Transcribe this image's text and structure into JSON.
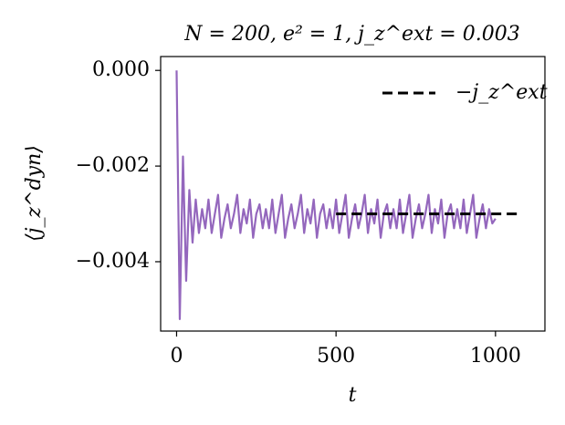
{
  "chart_data": {
    "type": "line",
    "title": "N = 200, e² = 1, j_z^ext = 0.003",
    "xlabel": "t",
    "ylabel": "⟨j_z^dyn⟩",
    "xlim": [
      -50,
      1155
    ],
    "xticks": [
      0,
      500,
      1000
    ],
    "ylim": [
      -0.00545,
      0.00029
    ],
    "yticks": [
      {
        "value": 0,
        "label": "0.000"
      },
      {
        "value": -0.002,
        "label": "−0.002"
      },
      {
        "value": -0.004,
        "label": "−0.004"
      }
    ],
    "legend": "upper right",
    "series": [
      {
        "color": "#9467bd",
        "dash": false,
        "x": [
          0,
          10,
          20,
          30,
          40,
          50,
          60,
          70,
          80,
          90,
          100,
          110,
          120,
          130,
          140,
          150,
          160,
          170,
          180,
          190,
          200,
          210,
          220,
          230,
          240,
          250,
          260,
          270,
          280,
          290,
          300,
          310,
          320,
          330,
          340,
          350,
          360,
          370,
          380,
          390,
          400,
          410,
          420,
          430,
          440,
          450,
          460,
          470,
          480,
          490,
          500,
          510,
          520,
          530,
          540,
          550,
          560,
          570,
          580,
          590,
          600,
          610,
          620,
          630,
          640,
          650,
          660,
          670,
          680,
          690,
          700,
          710,
          720,
          730,
          740,
          750,
          760,
          770,
          780,
          790,
          800,
          810,
          820,
          830,
          840,
          850,
          860,
          870,
          880,
          890,
          900,
          910,
          920,
          930,
          940,
          950,
          960,
          970,
          980,
          990,
          1000
        ],
        "values": [
          0,
          -0.0052,
          -0.0018,
          -0.0044,
          -0.0025,
          -0.0036,
          -0.0027,
          -0.0034,
          -0.0029,
          -0.0033,
          -0.0027,
          -0.0034,
          -0.003,
          -0.0026,
          -0.0035,
          -0.0031,
          -0.0028,
          -0.0033,
          -0.003,
          -0.0026,
          -0.0034,
          -0.0029,
          -0.0032,
          -0.0027,
          -0.0035,
          -0.003,
          -0.0028,
          -0.0033,
          -0.0029,
          -0.0033,
          -0.0027,
          -0.0034,
          -0.003,
          -0.0026,
          -0.0035,
          -0.0031,
          -0.0028,
          -0.0033,
          -0.003,
          -0.0026,
          -0.0034,
          -0.0029,
          -0.0032,
          -0.0027,
          -0.0035,
          -0.003,
          -0.0028,
          -0.0033,
          -0.0029,
          -0.0033,
          -0.0027,
          -0.0034,
          -0.003,
          -0.0026,
          -0.0035,
          -0.0031,
          -0.0028,
          -0.0033,
          -0.003,
          -0.0026,
          -0.0034,
          -0.0029,
          -0.0032,
          -0.0027,
          -0.0035,
          -0.003,
          -0.0028,
          -0.0033,
          -0.0029,
          -0.0033,
          -0.0027,
          -0.0034,
          -0.003,
          -0.0026,
          -0.0035,
          -0.0031,
          -0.0028,
          -0.0033,
          -0.003,
          -0.0026,
          -0.0034,
          -0.0029,
          -0.0032,
          -0.0027,
          -0.0035,
          -0.003,
          -0.0028,
          -0.0033,
          -0.0029,
          -0.0033,
          -0.0027,
          -0.0034,
          -0.003,
          -0.0026,
          -0.0035,
          -0.0031,
          -0.0028,
          -0.0033,
          -0.0029,
          -0.0032,
          -0.0031
        ]
      },
      {
        "name": "−j_z^ext",
        "color": "#000000",
        "dash": true,
        "x": [
          500,
          1080
        ],
        "values": [
          -0.003,
          -0.003
        ]
      }
    ]
  }
}
